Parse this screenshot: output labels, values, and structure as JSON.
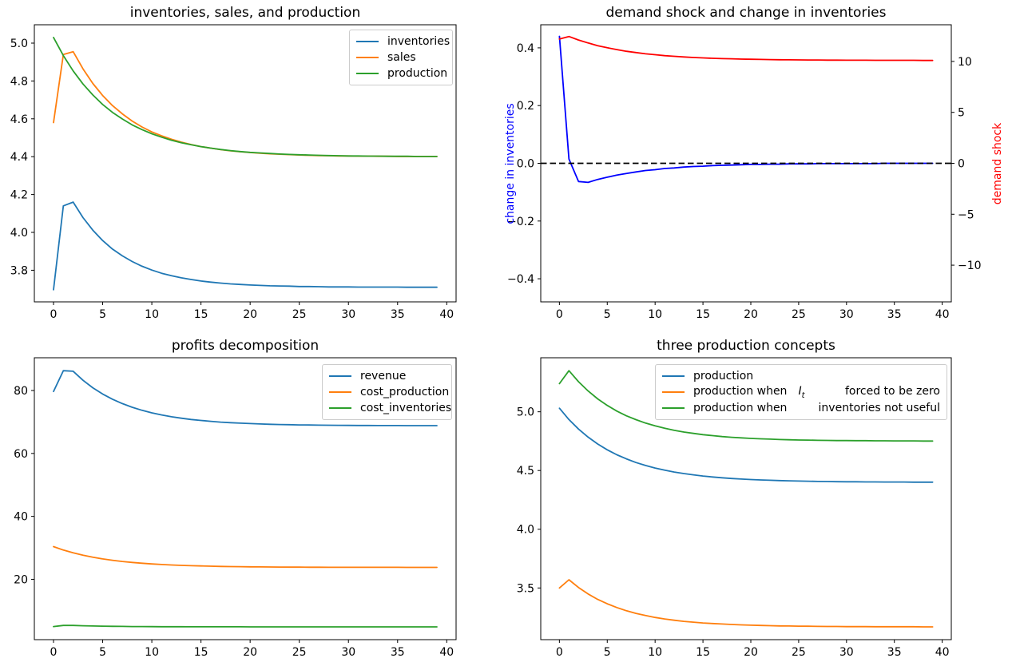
{
  "colors": {
    "mpl_blue": "#1f77b4",
    "mpl_orange": "#ff7f0e",
    "mpl_green": "#2ca02c",
    "pure_blue": "#0000ff",
    "pure_red": "#ff0000",
    "black": "#000000"
  },
  "chart_data": [
    {
      "type": "line",
      "title": "inventories, sales, and production",
      "x": [
        0,
        1,
        2,
        3,
        4,
        5,
        6,
        7,
        8,
        9,
        10,
        11,
        12,
        13,
        14,
        15,
        16,
        17,
        18,
        19,
        20,
        21,
        22,
        23,
        24,
        25,
        26,
        27,
        28,
        29,
        30,
        31,
        32,
        33,
        34,
        35,
        36,
        37,
        38,
        39
      ],
      "xlim": [
        -1.95,
        40.95
      ],
      "ylim": [
        3.633,
        5.097
      ],
      "xticks": [
        0,
        5,
        10,
        15,
        20,
        25,
        30,
        35,
        40
      ],
      "xtick_labels": [
        "0",
        "5",
        "10",
        "15",
        "20",
        "25",
        "30",
        "35",
        "40"
      ],
      "yticks": [
        3.8,
        4.0,
        4.2,
        4.4,
        4.6,
        4.8,
        5.0
      ],
      "ytick_labels": [
        "3.8",
        "4.0",
        "4.2",
        "4.4",
        "4.6",
        "4.8",
        "5.0"
      ],
      "legend_position": "upper right",
      "series": [
        {
          "name": "inventories",
          "color": "#1f77b4",
          "values": [
            3.697,
            4.14,
            4.16,
            4.078,
            4.012,
            3.957,
            3.912,
            3.876,
            3.846,
            3.821,
            3.801,
            3.784,
            3.771,
            3.76,
            3.751,
            3.743,
            3.737,
            3.732,
            3.728,
            3.725,
            3.722,
            3.72,
            3.718,
            3.717,
            3.716,
            3.714,
            3.714,
            3.713,
            3.712,
            3.712,
            3.712,
            3.711,
            3.711,
            3.711,
            3.711,
            3.711,
            3.71,
            3.71,
            3.71,
            3.71
          ]
        },
        {
          "name": "sales",
          "color": "#ff7f0e",
          "values": [
            4.58,
            4.94,
            4.955,
            4.864,
            4.787,
            4.723,
            4.67,
            4.626,
            4.588,
            4.557,
            4.531,
            4.51,
            4.492,
            4.477,
            4.464,
            4.453,
            4.445,
            4.437,
            4.431,
            4.426,
            4.422,
            4.418,
            4.415,
            4.413,
            4.411,
            4.409,
            4.407,
            4.406,
            4.405,
            4.404,
            4.404,
            4.403,
            4.403,
            4.402,
            4.402,
            4.401,
            4.401,
            4.401,
            4.401,
            4.401
          ]
        },
        {
          "name": "production",
          "color": "#2ca02c",
          "values": [
            5.03,
            4.934,
            4.853,
            4.784,
            4.726,
            4.676,
            4.634,
            4.599,
            4.568,
            4.543,
            4.521,
            4.503,
            4.487,
            4.474,
            4.463,
            4.453,
            4.445,
            4.438,
            4.432,
            4.427,
            4.423,
            4.42,
            4.417,
            4.414,
            4.412,
            4.41,
            4.409,
            4.407,
            4.406,
            4.405,
            4.404,
            4.404,
            4.403,
            4.403,
            4.402,
            4.402,
            4.402,
            4.401,
            4.401,
            4.401
          ]
        }
      ]
    },
    {
      "type": "line",
      "title": "demand shock and change in inventories",
      "ylabel_left": {
        "text": "change in inventories",
        "color": "#0000ff"
      },
      "ylabel_right": {
        "text": "demand shock",
        "color": "#ff0000"
      },
      "x": [
        0,
        1,
        2,
        3,
        4,
        5,
        6,
        7,
        8,
        9,
        10,
        11,
        12,
        13,
        14,
        15,
        16,
        17,
        18,
        19,
        20,
        21,
        22,
        23,
        24,
        25,
        26,
        27,
        28,
        29,
        30,
        31,
        32,
        33,
        34,
        35,
        36,
        37,
        38,
        39
      ],
      "xlim": [
        -1.95,
        40.95
      ],
      "ylim": [
        -0.48,
        0.48
      ],
      "ylim_right": [
        -13.6,
        13.6
      ],
      "xticks": [
        0,
        5,
        10,
        15,
        20,
        25,
        30,
        35,
        40
      ],
      "xtick_labels": [
        "0",
        "5",
        "10",
        "15",
        "20",
        "25",
        "30",
        "35",
        "40"
      ],
      "yticks": [
        -0.4,
        -0.2,
        0.0,
        0.2,
        0.4
      ],
      "ytick_labels": [
        "−0.4",
        "−0.2",
        "0.0",
        "0.2",
        "0.4"
      ],
      "yticks_right": [
        -10,
        -5,
        0,
        5,
        10
      ],
      "ytick_labels_right": [
        "−10",
        "−5",
        "0",
        "5",
        "10"
      ],
      "hline": {
        "y": 0,
        "color": "#000000",
        "style": "dashed"
      },
      "series": [
        {
          "name": "change in inventories",
          "color": "#0000ff",
          "axis": "left",
          "values": [
            0.44,
            0.015,
            -0.063,
            -0.066,
            -0.056,
            -0.048,
            -0.041,
            -0.035,
            -0.03,
            -0.025,
            -0.022,
            -0.018,
            -0.016,
            -0.013,
            -0.011,
            -0.01,
            -0.008,
            -0.007,
            -0.006,
            -0.005,
            -0.004,
            -0.004,
            -0.003,
            -0.003,
            -0.002,
            -0.002,
            -0.002,
            -0.001,
            -0.001,
            -0.001,
            -0.001,
            -0.001,
            -0.001,
            -0.001,
            0.0,
            0.0,
            0.0,
            0.0,
            0.0,
            0.0
          ]
        },
        {
          "name": "demand shock",
          "color": "#ff0000",
          "axis": "right",
          "values": [
            12.2,
            12.45,
            12.1,
            11.81,
            11.55,
            11.34,
            11.16,
            11.0,
            10.87,
            10.75,
            10.66,
            10.57,
            10.5,
            10.44,
            10.39,
            10.35,
            10.31,
            10.28,
            10.26,
            10.23,
            10.21,
            10.2,
            10.18,
            10.17,
            10.16,
            10.15,
            10.14,
            10.14,
            10.13,
            10.13,
            10.12,
            10.12,
            10.12,
            10.11,
            10.11,
            10.11,
            10.11,
            10.11,
            10.1,
            10.1
          ]
        }
      ]
    },
    {
      "type": "line",
      "title": "profits decomposition",
      "x": [
        0,
        1,
        2,
        3,
        4,
        5,
        6,
        7,
        8,
        9,
        10,
        11,
        12,
        13,
        14,
        15,
        16,
        17,
        18,
        19,
        20,
        21,
        22,
        23,
        24,
        25,
        26,
        27,
        28,
        29,
        30,
        31,
        32,
        33,
        34,
        35,
        36,
        37,
        38,
        39
      ],
      "xlim": [
        -1.95,
        40.95
      ],
      "ylim": [
        0.83,
        90.4
      ],
      "xticks": [
        0,
        5,
        10,
        15,
        20,
        25,
        30,
        35,
        40
      ],
      "xtick_labels": [
        "0",
        "5",
        "10",
        "15",
        "20",
        "25",
        "30",
        "35",
        "40"
      ],
      "yticks": [
        20,
        40,
        60,
        80
      ],
      "ytick_labels": [
        "20",
        "40",
        "60",
        "80"
      ],
      "legend_position": "upper right",
      "series": [
        {
          "name": "revenue",
          "color": "#1f77b4",
          "values": [
            79.7,
            86.3,
            86.1,
            83.25,
            80.87,
            78.88,
            77.22,
            75.83,
            74.68,
            73.71,
            72.9,
            72.22,
            71.66,
            71.19,
            70.79,
            70.47,
            70.19,
            69.96,
            69.77,
            69.61,
            69.48,
            69.37,
            69.27,
            69.19,
            69.13,
            69.07,
            69.03,
            68.99,
            68.96,
            68.93,
            68.91,
            68.89,
            68.88,
            68.87,
            68.85,
            68.85,
            68.84,
            68.83,
            68.83,
            68.82
          ]
        },
        {
          "name": "cost_production",
          "color": "#ff7f0e",
          "values": [
            30.4,
            29.31,
            28.4,
            27.65,
            27.01,
            26.48,
            26.04,
            25.67,
            25.36,
            25.11,
            24.89,
            24.71,
            24.56,
            24.44,
            24.33,
            24.24,
            24.17,
            24.11,
            24.05,
            24.01,
            23.97,
            23.94,
            23.92,
            23.89,
            23.88,
            23.86,
            23.85,
            23.84,
            23.83,
            23.83,
            23.82,
            23.82,
            23.81,
            23.81,
            23.81,
            23.81,
            23.8,
            23.8,
            23.8,
            23.8
          ]
        },
        {
          "name": "cost_inventories",
          "color": "#2ca02c",
          "values": [
            5.0,
            5.35,
            5.35,
            5.25,
            5.17,
            5.11,
            5.07,
            5.03,
            5.0,
            4.98,
            4.96,
            4.95,
            4.94,
            4.93,
            4.92,
            4.92,
            4.91,
            4.91,
            4.91,
            4.91,
            4.9,
            4.9,
            4.9,
            4.9,
            4.9,
            4.9,
            4.9,
            4.9,
            4.9,
            4.9,
            4.9,
            4.9,
            4.9,
            4.9,
            4.9,
            4.9,
            4.9,
            4.9,
            4.9,
            4.9
          ]
        }
      ]
    },
    {
      "type": "line",
      "title": "three production concepts",
      "x": [
        0,
        1,
        2,
        3,
        4,
        5,
        6,
        7,
        8,
        9,
        10,
        11,
        12,
        13,
        14,
        15,
        16,
        17,
        18,
        19,
        20,
        21,
        22,
        23,
        24,
        25,
        26,
        27,
        28,
        29,
        30,
        31,
        32,
        33,
        34,
        35,
        36,
        37,
        38,
        39
      ],
      "xlim": [
        -1.95,
        40.95
      ],
      "ylim": [
        3.06,
        5.46
      ],
      "xticks": [
        0,
        5,
        10,
        15,
        20,
        25,
        30,
        35,
        40
      ],
      "xtick_labels": [
        "0",
        "5",
        "10",
        "15",
        "20",
        "25",
        "30",
        "35",
        "40"
      ],
      "yticks": [
        3.5,
        4.0,
        4.5,
        5.0
      ],
      "ytick_labels": [
        "3.5",
        "4.0",
        "4.5",
        "5.0"
      ],
      "legend_position": "upper center",
      "legend_rows": [
        {
          "left": "production"
        },
        {
          "left": "production when",
          "math_base": "I",
          "math_sub": "t",
          "right": "forced to be zero"
        },
        {
          "left": "production when",
          "right": "inventories not useful"
        }
      ],
      "series": [
        {
          "name": "production",
          "color": "#1f77b4",
          "values": [
            5.03,
            4.934,
            4.853,
            4.784,
            4.726,
            4.676,
            4.634,
            4.599,
            4.568,
            4.543,
            4.521,
            4.503,
            4.487,
            4.474,
            4.463,
            4.453,
            4.445,
            4.438,
            4.432,
            4.427,
            4.423,
            4.42,
            4.417,
            4.414,
            4.412,
            4.41,
            4.409,
            4.407,
            4.406,
            4.405,
            4.404,
            4.404,
            4.403,
            4.403,
            4.402,
            4.402,
            4.402,
            4.401,
            4.401,
            4.401
          ]
        },
        {
          "name": "production when It forced to be zero",
          "color": "#ff7f0e",
          "values": [
            3.5,
            3.57,
            3.504,
            3.449,
            3.403,
            3.365,
            3.333,
            3.306,
            3.284,
            3.265,
            3.249,
            3.236,
            3.225,
            3.216,
            3.209,
            3.202,
            3.197,
            3.193,
            3.189,
            3.186,
            3.183,
            3.181,
            3.179,
            3.177,
            3.176,
            3.175,
            3.174,
            3.173,
            3.172,
            3.172,
            3.171,
            3.171,
            3.171,
            3.17,
            3.17,
            3.17,
            3.17,
            3.17,
            3.169,
            3.169
          ]
        },
        {
          "name": "production when inventories not useful",
          "color": "#2ca02c",
          "values": [
            5.24,
            5.35,
            5.256,
            5.177,
            5.11,
            5.054,
            5.006,
            4.966,
            4.933,
            4.904,
            4.88,
            4.86,
            4.842,
            4.828,
            4.816,
            4.805,
            4.797,
            4.789,
            4.783,
            4.778,
            4.773,
            4.77,
            4.767,
            4.764,
            4.762,
            4.76,
            4.759,
            4.757,
            4.756,
            4.755,
            4.755,
            4.754,
            4.754,
            4.753,
            4.753,
            4.752,
            4.752,
            4.752,
            4.751,
            4.751
          ]
        }
      ]
    }
  ]
}
